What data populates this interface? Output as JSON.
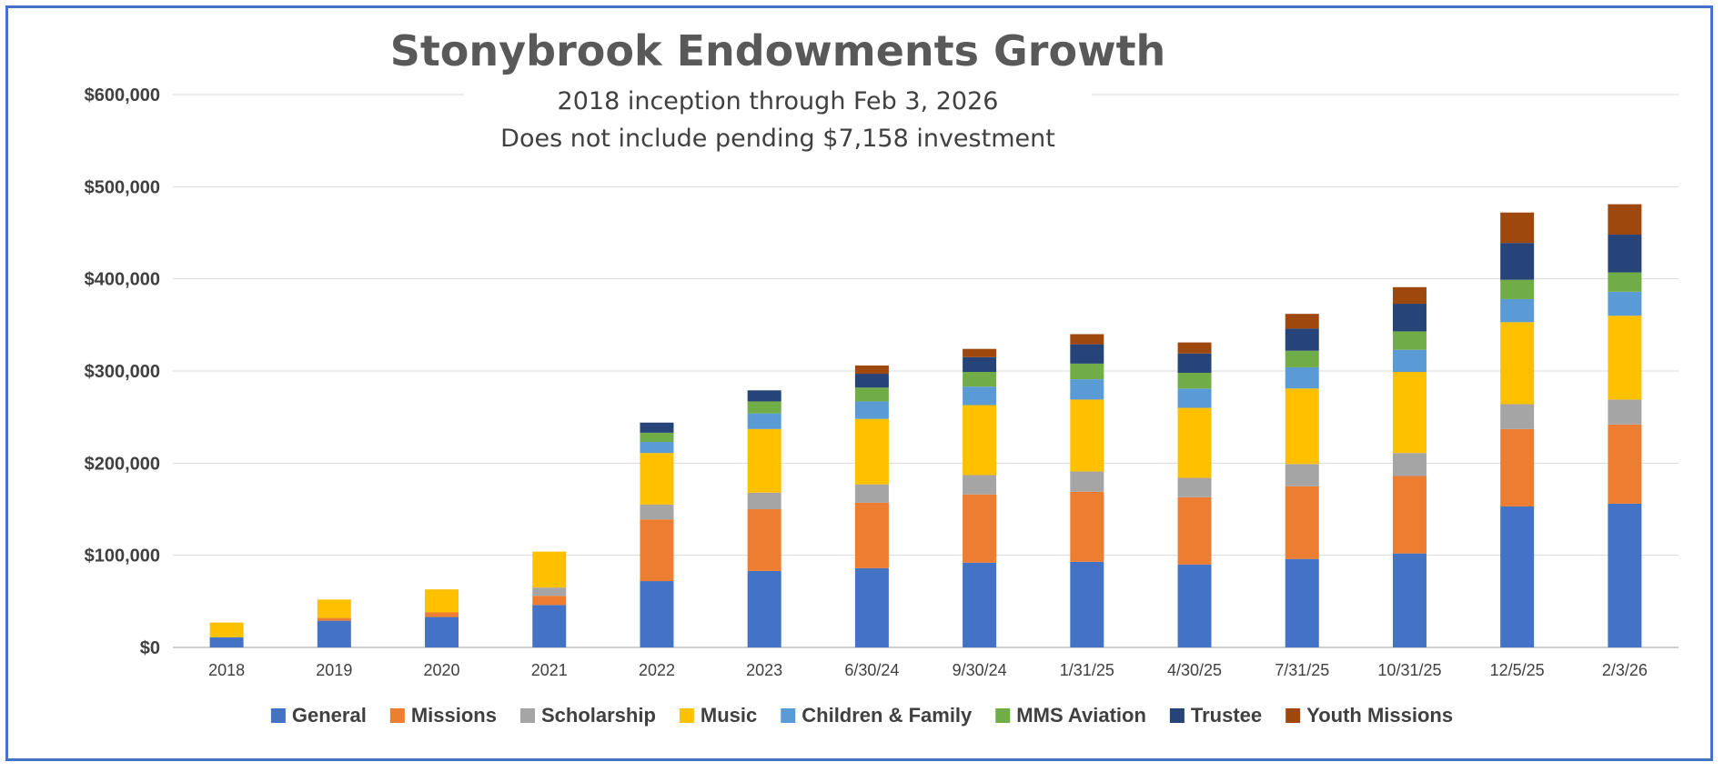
{
  "chart_data": {
    "type": "bar",
    "stacked": true,
    "title": "Stonybrook Endowments Growth",
    "subtitle_lines": [
      "2018 inception through Feb 3, 2026",
      "Does not include pending $7,158 investment"
    ],
    "xlabel": "",
    "ylabel": "",
    "ylim": [
      0,
      600000
    ],
    "yticks": [
      0,
      100000,
      200000,
      300000,
      400000,
      500000,
      600000
    ],
    "ytick_labels": [
      "$0",
      "$100,000",
      "$200,000",
      "$300,000",
      "$400,000",
      "$500,000",
      "$600,000"
    ],
    "grid": true,
    "legend_position": "bottom",
    "categories": [
      "2018",
      "2019",
      "2020",
      "2021",
      "2022",
      "2023",
      "6/30/24",
      "9/30/24",
      "1/31/25",
      "4/30/25",
      "7/31/25",
      "10/31/25",
      "12/5/25",
      "2/3/26"
    ],
    "series": [
      {
        "name": "General",
        "color": "#4472C4",
        "values": [
          11000,
          29000,
          33000,
          46000,
          72000,
          83000,
          86000,
          92000,
          93000,
          90000,
          96000,
          102000,
          153000,
          156000
        ]
      },
      {
        "name": "Missions",
        "color": "#ED7D31",
        "values": [
          0,
          3000,
          5000,
          10000,
          67000,
          67000,
          71000,
          74000,
          76000,
          73000,
          79000,
          84000,
          84000,
          86000
        ]
      },
      {
        "name": "Scholarship",
        "color": "#A5A5A5",
        "values": [
          0,
          0,
          0,
          9000,
          16000,
          18000,
          20000,
          21000,
          22000,
          21000,
          24000,
          25000,
          27000,
          27000
        ]
      },
      {
        "name": "Music",
        "color": "#FFC000",
        "values": [
          16000,
          20000,
          25000,
          39000,
          56000,
          69000,
          71000,
          76000,
          78000,
          76000,
          82000,
          88000,
          89000,
          91000
        ]
      },
      {
        "name": "Children & Family",
        "color": "#5B9BD5",
        "values": [
          0,
          0,
          0,
          0,
          12000,
          17000,
          19000,
          20000,
          22000,
          21000,
          23000,
          24000,
          25000,
          26000
        ]
      },
      {
        "name": "MMS Aviation",
        "color": "#70AD47",
        "values": [
          0,
          0,
          0,
          0,
          10000,
          13000,
          15000,
          16000,
          17000,
          17000,
          18000,
          20000,
          21000,
          21000
        ]
      },
      {
        "name": "Trustee",
        "color": "#264478",
        "values": [
          0,
          0,
          0,
          0,
          11000,
          12000,
          15000,
          16000,
          21000,
          21000,
          24000,
          30000,
          40000,
          41000
        ]
      },
      {
        "name": "Youth Missions",
        "color": "#9E480E",
        "values": [
          0,
          0,
          0,
          0,
          0,
          0,
          9000,
          9000,
          11000,
          12000,
          16000,
          18000,
          33000,
          33000
        ]
      }
    ]
  }
}
